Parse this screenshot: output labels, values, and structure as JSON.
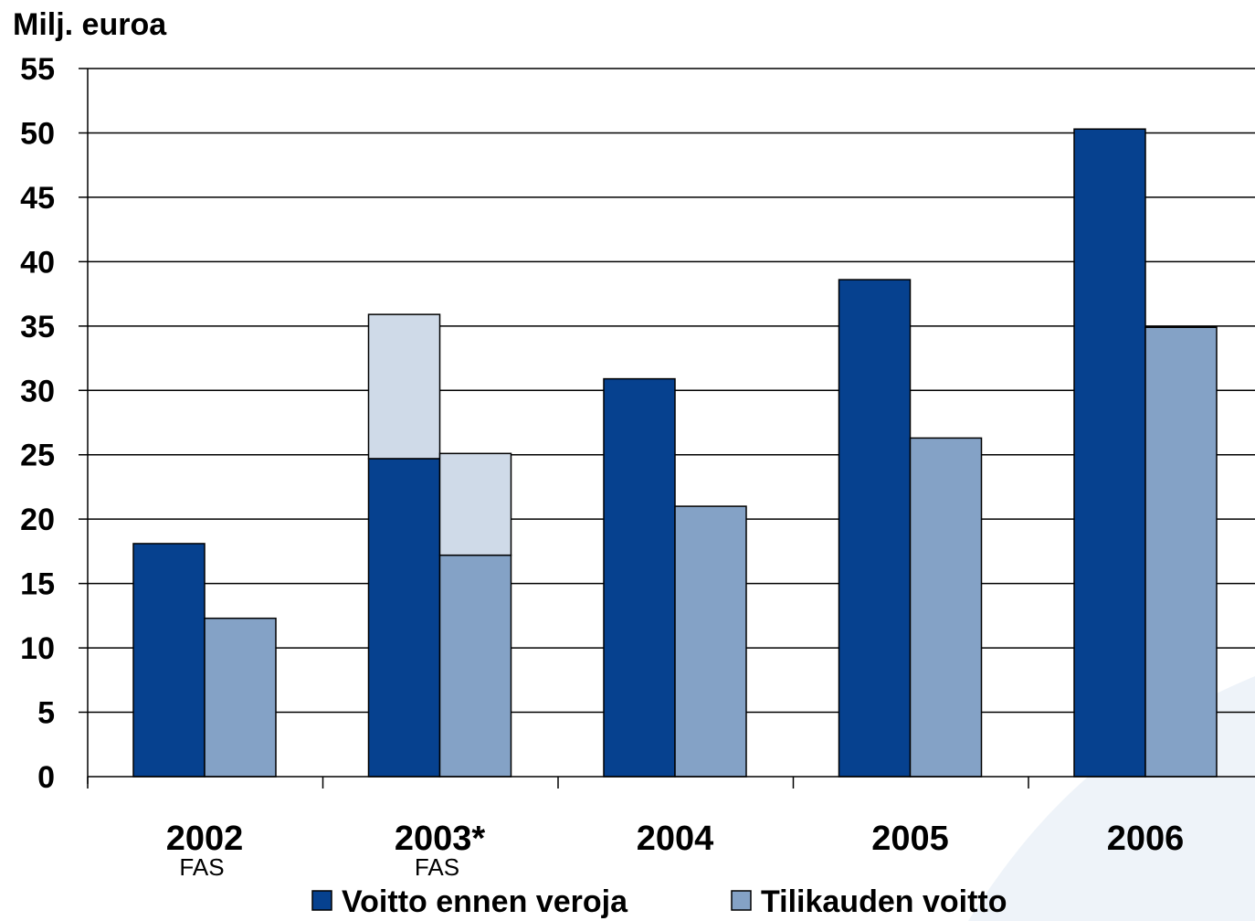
{
  "colors": {
    "voitto_ennen_veroja": "#06418f",
    "tilikauden_voitto": "#84a2c6",
    "restated_increment": "#cfdae8",
    "background_swoosh": "#eef3f9",
    "gridline": "#000000"
  },
  "chart_data": {
    "type": "bar",
    "ylabel": "Milj. euroa",
    "ylim": [
      0,
      55
    ],
    "yticks": [
      0,
      5,
      10,
      15,
      20,
      25,
      30,
      35,
      40,
      45,
      50,
      55
    ],
    "grid": true,
    "legend_position": "bottom",
    "categories": [
      "2002",
      "2003*",
      "2004",
      "2005",
      "2006"
    ],
    "category_sublabels": [
      "FAS",
      "FAS",
      "",
      "",
      ""
    ],
    "series": [
      {
        "name": "Voitto ennen veroja",
        "color_key": "voitto_ennen_veroja",
        "values": [
          18.1,
          24.7,
          30.9,
          38.6,
          50.3
        ],
        "stacked_extra": [
          0,
          11.2,
          0,
          0,
          0
        ]
      },
      {
        "name": "Tilikauden voitto",
        "color_key": "tilikauden_voitto",
        "values": [
          12.3,
          17.2,
          21.0,
          26.3,
          34.9
        ],
        "stacked_extra": [
          0,
          7.9,
          0,
          0,
          0
        ]
      }
    ]
  }
}
